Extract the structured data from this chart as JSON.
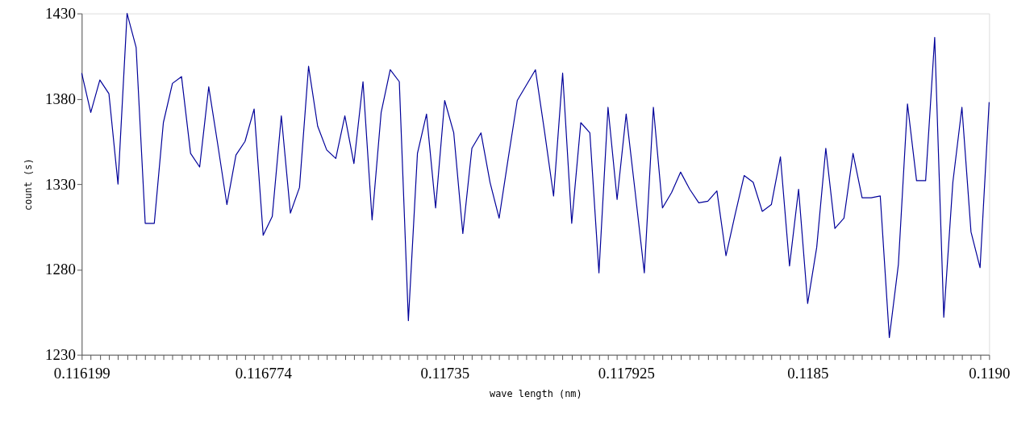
{
  "chart_data": {
    "type": "line",
    "xlabel": "wave length (nm)",
    "ylabel": "count (s)",
    "categories": [
      "0.116199",
      null,
      null,
      null,
      null,
      null,
      null,
      null,
      null,
      null,
      null,
      null,
      null,
      null,
      null,
      null,
      null,
      null,
      null,
      null,
      "0.116774",
      null,
      null,
      null,
      null,
      null,
      null,
      null,
      null,
      null,
      null,
      null,
      null,
      null,
      null,
      null,
      null,
      null,
      null,
      null,
      "0.11735",
      null,
      null,
      null,
      null,
      null,
      null,
      null,
      null,
      null,
      null,
      null,
      null,
      null,
      null,
      null,
      null,
      null,
      null,
      null,
      "0.117925",
      null,
      null,
      null,
      null,
      null,
      null,
      null,
      null,
      null,
      null,
      null,
      null,
      null,
      null,
      null,
      null,
      null,
      null,
      null,
      "0.1185",
      null,
      null,
      null,
      null,
      null,
      null,
      null,
      null,
      null,
      null,
      null,
      null,
      null,
      null,
      null,
      null,
      null,
      null,
      null,
      "0.1190"
    ],
    "series": [
      {
        "color": "#000099",
        "values": [
          1395,
          1372,
          1391,
          1383,
          1330,
          1430,
          1410,
          1307,
          1307,
          1366,
          1389,
          1393,
          1348,
          1340,
          1387,
          1353,
          1318,
          1347,
          1355,
          1374,
          1300,
          1311,
          1370,
          1313,
          1328,
          1399,
          1364,
          1350,
          1345,
          1370,
          1342,
          1390,
          1309,
          1372,
          1397,
          1390,
          1250,
          1348,
          1371,
          1316,
          1379,
          1360,
          1301,
          1351,
          1360,
          1331,
          1310,
          1345,
          1379,
          1388,
          1397,
          1361,
          1323,
          1395,
          1307,
          1366,
          1360,
          1278,
          1375,
          1321,
          1371,
          1325,
          1278,
          1375,
          1316,
          1325,
          1337,
          1327,
          1319,
          1320,
          1326,
          1288,
          1312,
          1335,
          1331,
          1314,
          1318,
          1346,
          1282,
          1327,
          1260,
          1293,
          1351,
          1304,
          1310,
          1348,
          1322,
          1322,
          1323,
          1240,
          1283,
          1377,
          1332,
          1332,
          1416,
          1252,
          1331,
          1375,
          1302,
          1281,
          1378
        ]
      }
    ],
    "ylim": [
      1230,
      1430
    ],
    "yticks": [
      1230,
      1280,
      1330,
      1380,
      1430
    ],
    "grid": false,
    "marker": "none",
    "line_style": "solid"
  }
}
